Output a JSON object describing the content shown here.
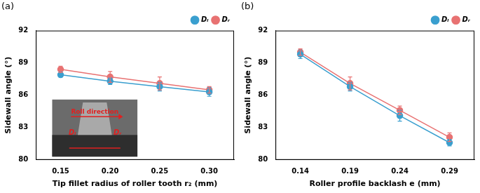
{
  "chart_data": [
    {
      "type": "line",
      "title": "(a)",
      "x_label": "Tip fillet radius of roller tooth r₂ (mm)",
      "y_label": "Sidewall angle (°)",
      "categories": [
        "0.15",
        "0.20",
        "0.25",
        "0.30"
      ],
      "ylim": [
        80,
        92
      ],
      "yticks": [
        80,
        83,
        86,
        89,
        92
      ],
      "grid": false,
      "legend": "upper right",
      "series": [
        {
          "name": "Dₗ",
          "color": "#3a9fcf",
          "marker": "circle",
          "values": [
            87.9,
            87.3,
            86.8,
            86.3
          ],
          "errors": [
            0.2,
            0.3,
            0.4,
            0.4
          ]
        },
        {
          "name": "Dᵣ",
          "color": "#e87272",
          "marker": "circle",
          "values": [
            88.4,
            87.7,
            87.1,
            86.5
          ],
          "errors": [
            0.3,
            0.5,
            0.6,
            0.3
          ]
        }
      ],
      "annotations": [
        {
          "text": "Roll direction"
        },
        {
          "text": "Dₗ"
        },
        {
          "text": "Dᵣ"
        }
      ]
    },
    {
      "type": "line",
      "title": "(b)",
      "x_label": "Roller profile backlash e (mm)",
      "y_label": "Sidewall angle (°)",
      "categories": [
        "0.14",
        "0.19",
        "0.24",
        "0.29"
      ],
      "ylim": [
        80,
        92
      ],
      "yticks": [
        80,
        83,
        86,
        89,
        92
      ],
      "grid": false,
      "legend": "upper right",
      "series": [
        {
          "name": "Dₗ",
          "color": "#3a9fcf",
          "marker": "circle",
          "values": [
            89.8,
            86.8,
            84.1,
            81.6
          ],
          "errors": [
            0.4,
            0.4,
            0.5,
            0.3
          ]
        },
        {
          "name": "Dᵣ",
          "color": "#e87272",
          "marker": "circle",
          "values": [
            90.0,
            87.1,
            84.6,
            82.1
          ],
          "errors": [
            0.3,
            0.6,
            0.4,
            0.4
          ]
        }
      ]
    }
  ]
}
